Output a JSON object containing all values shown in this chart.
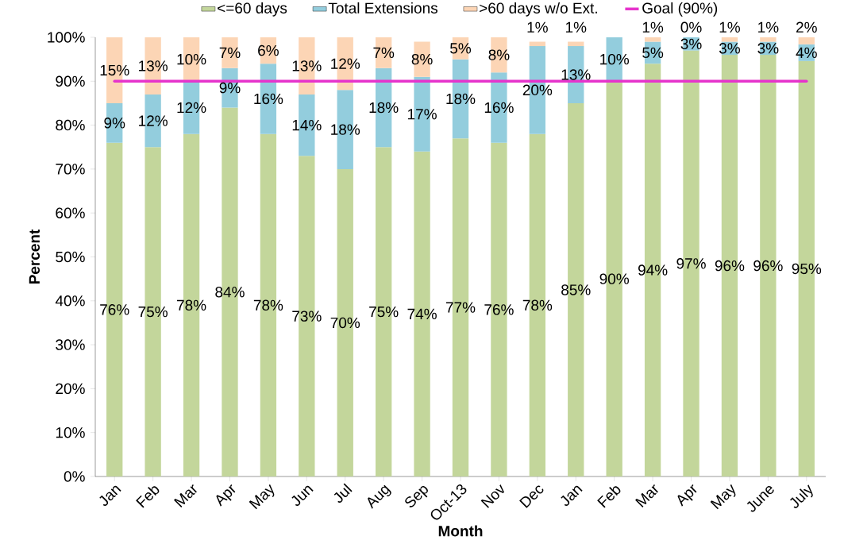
{
  "chart_data": {
    "type": "bar",
    "stacked": true,
    "xlabel": "Month",
    "ylabel": "Percent",
    "legend": "top",
    "categories": [
      "Jan",
      "Feb",
      "Mar",
      "Apr",
      "May",
      "Jun",
      "Jul",
      "Aug",
      "Sep",
      "Oct-13",
      "Nov",
      "Dec",
      "Jan",
      "Feb",
      "Mar",
      "Apr",
      "May",
      "June",
      "July"
    ],
    "ylim": [
      0,
      100
    ],
    "yticks": [
      {
        "value": 0,
        "label": "0%"
      },
      {
        "value": 10,
        "label": "10%"
      },
      {
        "value": 20,
        "label": "20%"
      },
      {
        "value": 30,
        "label": "30%"
      },
      {
        "value": 40,
        "label": "40%"
      },
      {
        "value": 50,
        "label": "50%"
      },
      {
        "value": 60,
        "label": "60%"
      },
      {
        "value": 70,
        "label": "70%"
      },
      {
        "value": 80,
        "label": "80%"
      },
      {
        "value": 90,
        "label": "90%"
      },
      {
        "value": 100,
        "label": "100%"
      }
    ],
    "series": [
      {
        "name": "<=60 days",
        "color": "#c3d69b",
        "values": [
          76,
          75,
          78,
          84,
          78,
          73,
          70,
          75,
          74,
          77,
          76,
          78,
          85,
          90,
          94,
          97,
          96,
          96,
          94.6
        ],
        "value_labels": [
          "76%",
          "75%",
          "78%",
          "84%",
          "78%",
          "73%",
          "70%",
          "75%",
          "74%",
          "77%",
          "76%",
          "78%",
          "85%",
          "90%",
          "94%",
          "97%",
          "96%",
          "96%",
          "95%"
        ]
      },
      {
        "name": "Total Extensions",
        "color": "#93cddd",
        "values": [
          9,
          12,
          12,
          9,
          16,
          14,
          18,
          18,
          17,
          18,
          16,
          20,
          13,
          10,
          5,
          3,
          3,
          3,
          3.8
        ],
        "value_labels": [
          "9%",
          "12%",
          "12%",
          "9%",
          "16%",
          "14%",
          "18%",
          "18%",
          "17%",
          "18%",
          "16%",
          "20%",
          "13%",
          "10%",
          "5%",
          "3%",
          "3%",
          "3%",
          "4%"
        ]
      },
      {
        "name": ">60 days w/o Ext.",
        "color": "#fcd5b5",
        "values": [
          15,
          13,
          10,
          7,
          6,
          13,
          12,
          7,
          8,
          5,
          8,
          1,
          1,
          null,
          1,
          0,
          1,
          1,
          1.6
        ],
        "value_labels": [
          "15%",
          "13%",
          "10%",
          "7%",
          "6%",
          "13%",
          "12%",
          "7%",
          "8%",
          "5%",
          "8%",
          "1%",
          "1%",
          null,
          "1%",
          "0%",
          "1%",
          "1%",
          "2%"
        ]
      }
    ],
    "ref_lines": [
      {
        "axis": "y",
        "value": 90,
        "label": "Goal (90%)",
        "color": "#e633cc"
      }
    ]
  }
}
